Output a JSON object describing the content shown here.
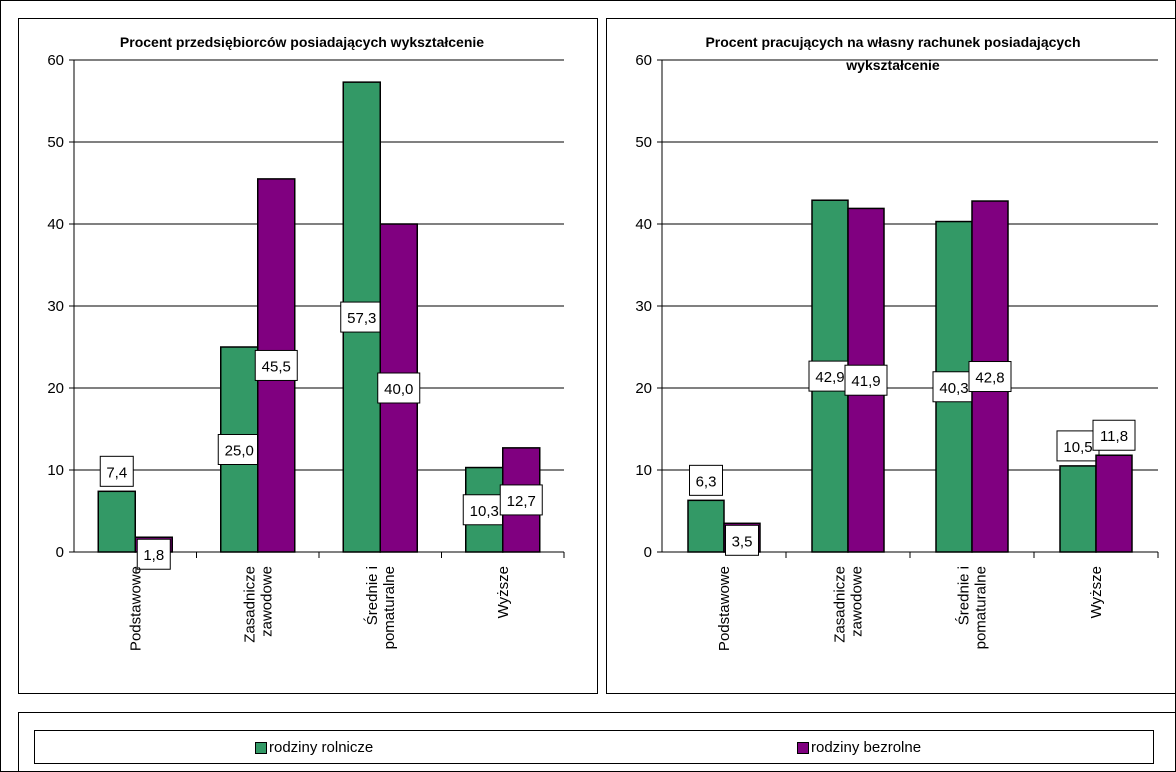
{
  "colors": {
    "rodziny_rolnicze": "#339966",
    "rodziny_bezrolne": "#800080"
  },
  "legend": {
    "items": [
      "rodziny rolnicze",
      "rodziny bezrolne"
    ]
  },
  "chart_data": [
    {
      "type": "bar",
      "title": "Procent przedsiębiorców posiadających wykształcenie",
      "categories": [
        "Podstawowe",
        "Zasadnicze zawodowe",
        "Średnie i pomaturalne",
        "Wyższe"
      ],
      "series": [
        {
          "name": "rodziny rolnicze",
          "values": [
            7.4,
            25.0,
            57.3,
            10.3
          ],
          "labels": [
            "7,4",
            "25,0",
            "57,3",
            "10,3"
          ]
        },
        {
          "name": "rodziny bezrolne",
          "values": [
            1.8,
            45.5,
            40.0,
            12.7
          ],
          "labels": [
            "1,8",
            "45,5",
            "40,0",
            "12,7"
          ]
        }
      ],
      "ylim": [
        0,
        60
      ],
      "yticks": [
        0,
        10,
        20,
        30,
        40,
        50,
        60
      ],
      "grid": true,
      "legend_position": "bottom"
    },
    {
      "type": "bar",
      "title": "Procent pracujących na własny rachunek posiadających wykształcenie",
      "categories": [
        "Podstawowe",
        "Zasadnicze zawodowe",
        "Średnie i pomaturalne",
        "Wyższe"
      ],
      "series": [
        {
          "name": "rodziny rolnicze",
          "values": [
            6.3,
            42.9,
            40.3,
            10.5
          ],
          "labels": [
            "6,3",
            "42,9",
            "40,3",
            "10,5"
          ]
        },
        {
          "name": "rodziny bezrolne",
          "values": [
            3.5,
            41.9,
            42.8,
            11.8
          ],
          "labels": [
            "3,5",
            "41,9",
            "42,8",
            "11,8"
          ]
        }
      ],
      "ylim": [
        0,
        60
      ],
      "yticks": [
        0,
        10,
        20,
        30,
        40,
        50,
        60
      ],
      "grid": true,
      "legend_position": "bottom"
    }
  ]
}
